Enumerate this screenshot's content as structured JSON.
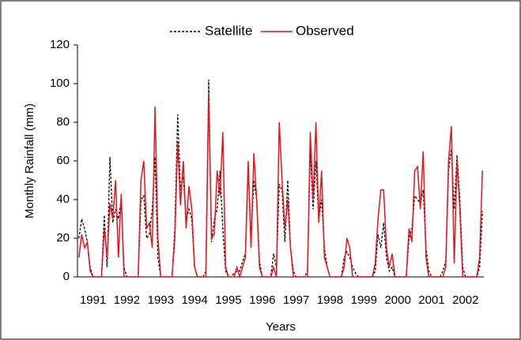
{
  "chart_data": {
    "type": "line",
    "x_label": "Years",
    "y_label": "Monthly Rainfall (mm)",
    "legend": "top",
    "categories": [
      null,
      null,
      null,
      null,
      null,
      "1991",
      null,
      null,
      null,
      null,
      null,
      null,
      null,
      null,
      null,
      null,
      null,
      "1992",
      null,
      null,
      null,
      null,
      null,
      null,
      null,
      null,
      null,
      null,
      null,
      "1993",
      null,
      null,
      null,
      null,
      null,
      null,
      null,
      null,
      null,
      null,
      null,
      "1994",
      null,
      null,
      null,
      null,
      null,
      null,
      null,
      null,
      null,
      null,
      null,
      "1995",
      null,
      null,
      null,
      null,
      null,
      null,
      null,
      null,
      null,
      null,
      null,
      "1996",
      null,
      null,
      null,
      null,
      null,
      null,
      null,
      null,
      null,
      null,
      null,
      "1997",
      null,
      null,
      null,
      null,
      null,
      null,
      null,
      null,
      null,
      null,
      null,
      "1998",
      null,
      null,
      null,
      null,
      null,
      null,
      null,
      null,
      null,
      null,
      null,
      "1999",
      null,
      null,
      null,
      null,
      null,
      null,
      null,
      null,
      null,
      null,
      null,
      "2000",
      null,
      null,
      null,
      null,
      null,
      null,
      null,
      null,
      null,
      null,
      null,
      "2001",
      null,
      null,
      null,
      null,
      null,
      null,
      null,
      null,
      null,
      null,
      null,
      "2002",
      null,
      null,
      null,
      null,
      null,
      null
    ],
    "series": [
      {
        "name": "Satellite",
        "color": "#000000",
        "line_style": "dashed",
        "values": [
          20,
          30,
          25,
          18,
          5,
          0,
          0,
          0,
          0,
          32,
          5,
          62,
          28,
          35,
          30,
          40,
          5,
          0,
          0,
          0,
          0,
          0,
          40,
          42,
          20,
          22,
          35,
          62,
          10,
          0,
          0,
          0,
          0,
          0,
          25,
          84,
          45,
          52,
          30,
          35,
          30,
          5,
          0,
          0,
          0,
          3,
          102,
          18,
          30,
          35,
          55,
          25,
          3,
          0,
          0,
          2,
          3,
          3,
          8,
          12,
          57,
          20,
          50,
          40,
          8,
          0,
          0,
          0,
          0,
          12,
          5,
          48,
          45,
          18,
          50,
          15,
          3,
          0,
          0,
          0,
          0,
          3,
          65,
          35,
          60,
          30,
          40,
          15,
          5,
          0,
          0,
          0,
          0,
          0,
          10,
          13,
          10,
          5,
          2,
          0,
          0,
          0,
          0,
          0,
          0,
          3,
          22,
          15,
          28,
          10,
          3,
          5,
          0,
          0,
          0,
          0,
          0,
          20,
          25,
          42,
          40,
          38,
          45,
          15,
          3,
          0,
          0,
          0,
          0,
          3,
          8,
          55,
          66,
          35,
          63,
          40,
          5,
          0,
          0,
          0,
          0,
          0,
          5,
          34
        ]
      },
      {
        "name": "Observed",
        "color": "#e8141c",
        "line_style": "solid",
        "values": [
          10,
          22,
          15,
          18,
          3,
          0,
          0,
          0,
          0,
          25,
          10,
          38,
          30,
          50,
          10,
          43,
          0,
          0,
          0,
          0,
          0,
          0,
          50,
          60,
          25,
          28,
          15,
          88,
          20,
          0,
          0,
          0,
          0,
          0,
          20,
          70,
          37,
          60,
          25,
          47,
          35,
          5,
          0,
          0,
          0,
          0,
          95,
          20,
          22,
          55,
          42,
          75,
          5,
          0,
          0,
          0,
          5,
          0,
          5,
          10,
          60,
          15,
          64,
          40,
          5,
          0,
          0,
          0,
          0,
          5,
          0,
          80,
          50,
          25,
          40,
          15,
          0,
          0,
          0,
          0,
          0,
          0,
          75,
          40,
          80,
          28,
          55,
          10,
          5,
          0,
          0,
          0,
          0,
          0,
          5,
          20,
          15,
          0,
          0,
          0,
          0,
          0,
          0,
          0,
          0,
          7,
          30,
          45,
          45,
          15,
          5,
          12,
          0,
          0,
          0,
          0,
          0,
          25,
          18,
          55,
          57,
          35,
          65,
          10,
          0,
          0,
          0,
          0,
          0,
          0,
          5,
          60,
          78,
          7,
          60,
          35,
          0,
          0,
          0,
          0,
          0,
          0,
          10,
          55
        ]
      }
    ],
    "ylim": [
      0,
      120
    ],
    "yticks": [
      0,
      20,
      40,
      60,
      80,
      100,
      120
    ],
    "grid": false
  }
}
